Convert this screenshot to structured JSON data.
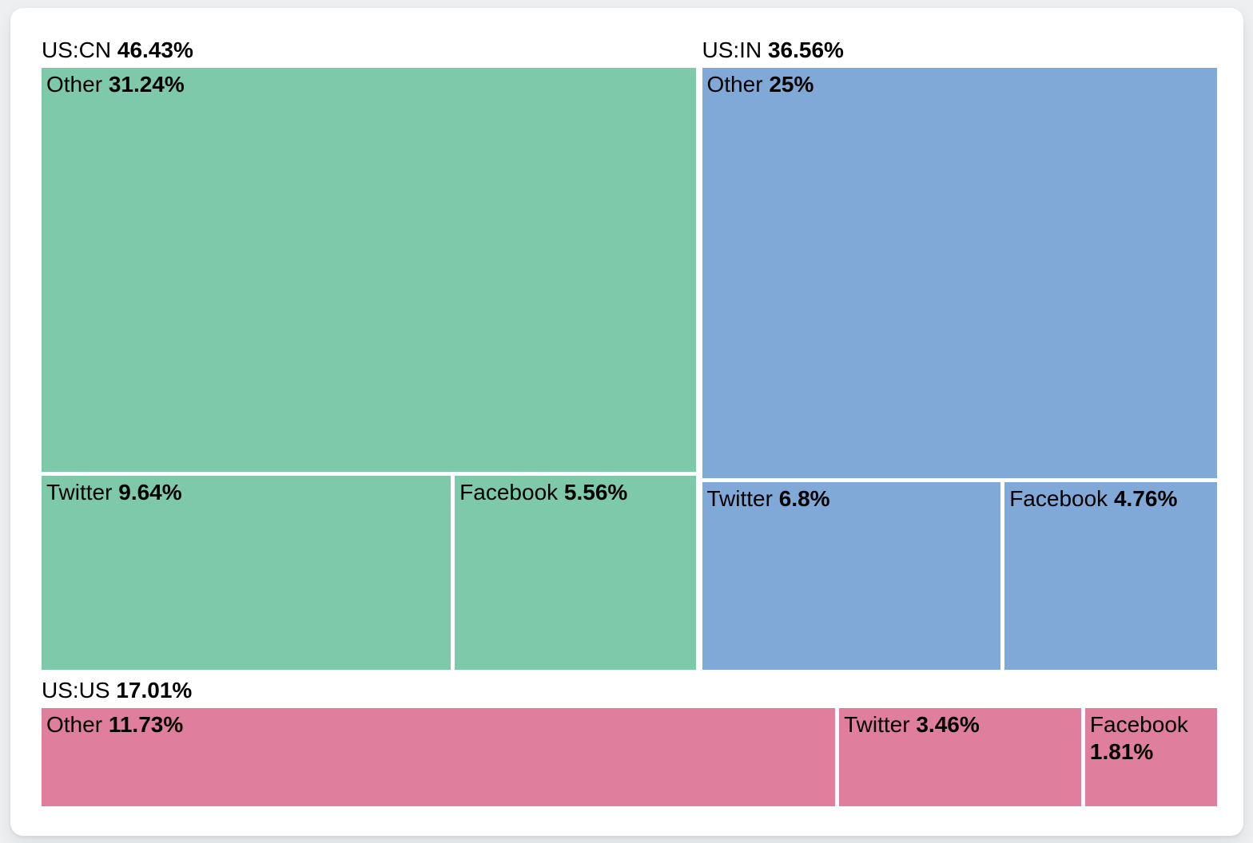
{
  "theme": {
    "page_background": "#edeff1",
    "card_background": "#ffffff",
    "text_color": "#000000"
  },
  "chart_data": {
    "type": "treemap",
    "unit": "%",
    "legend": "none",
    "groups": [
      {
        "label": "US:CN",
        "value": 46.43,
        "value_label": "46.43%",
        "color": "#7fc9ab",
        "children": [
          {
            "label": "Other",
            "value": 31.24,
            "value_label": "31.24%"
          },
          {
            "label": "Twitter",
            "value": 9.64,
            "value_label": "9.64%"
          },
          {
            "label": "Facebook",
            "value": 5.56,
            "value_label": "5.56%"
          }
        ]
      },
      {
        "label": "US:IN",
        "value": 36.56,
        "value_label": "36.56%",
        "color": "#80a9d7",
        "children": [
          {
            "label": "Other",
            "value": 25,
            "value_label": "25%"
          },
          {
            "label": "Twitter",
            "value": 6.8,
            "value_label": "6.8%"
          },
          {
            "label": "Facebook",
            "value": 4.76,
            "value_label": "4.76%"
          }
        ]
      },
      {
        "label": "US:US",
        "value": 17.01,
        "value_label": "17.01%",
        "color": "#e07e9e",
        "children": [
          {
            "label": "Other",
            "value": 11.73,
            "value_label": "11.73%"
          },
          {
            "label": "Twitter",
            "value": 3.46,
            "value_label": "3.46%"
          },
          {
            "label": "Facebook",
            "value": 1.81,
            "value_label": "1.81%"
          }
        ]
      }
    ]
  }
}
